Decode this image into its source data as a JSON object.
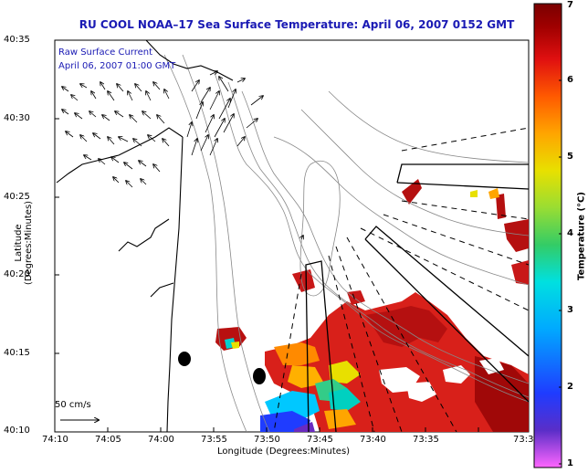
{
  "title": "RU COOL  NOAA–17  Sea Surface Temperature:  April 06, 2007 0152 GMT",
  "legend": {
    "line1": "Raw Surface Current",
    "line2": "April 06, 2007 01:00 GMT"
  },
  "scale": {
    "label": "50 cm/s"
  },
  "x_axis": {
    "title": "Longitude (Degrees:Minutes)",
    "ticks": [
      "74:10",
      "74:05",
      "74:00",
      "73:55",
      "73:50",
      "73:45",
      "73:40",
      "73:35",
      "73:3"
    ]
  },
  "y_axis": {
    "title": "Latitude (Degrees:Minutes)",
    "ticks": [
      "40:35",
      "40:30",
      "40:25",
      "40:20",
      "40:15",
      "40:10"
    ]
  },
  "colorbar": {
    "title": "Temperature (°C)",
    "ticks": [
      "7",
      "6",
      "5",
      "4",
      "3",
      "2",
      "1"
    ],
    "colors": [
      "#ff66ff",
      "#5a2ec8",
      "#1f3cff",
      "#00aaff",
      "#00e0e0",
      "#33cc66",
      "#99dd33",
      "#e8e000",
      "#ffa500",
      "#ff5a00",
      "#e01010",
      "#a00000",
      "#7a0000"
    ]
  }
}
